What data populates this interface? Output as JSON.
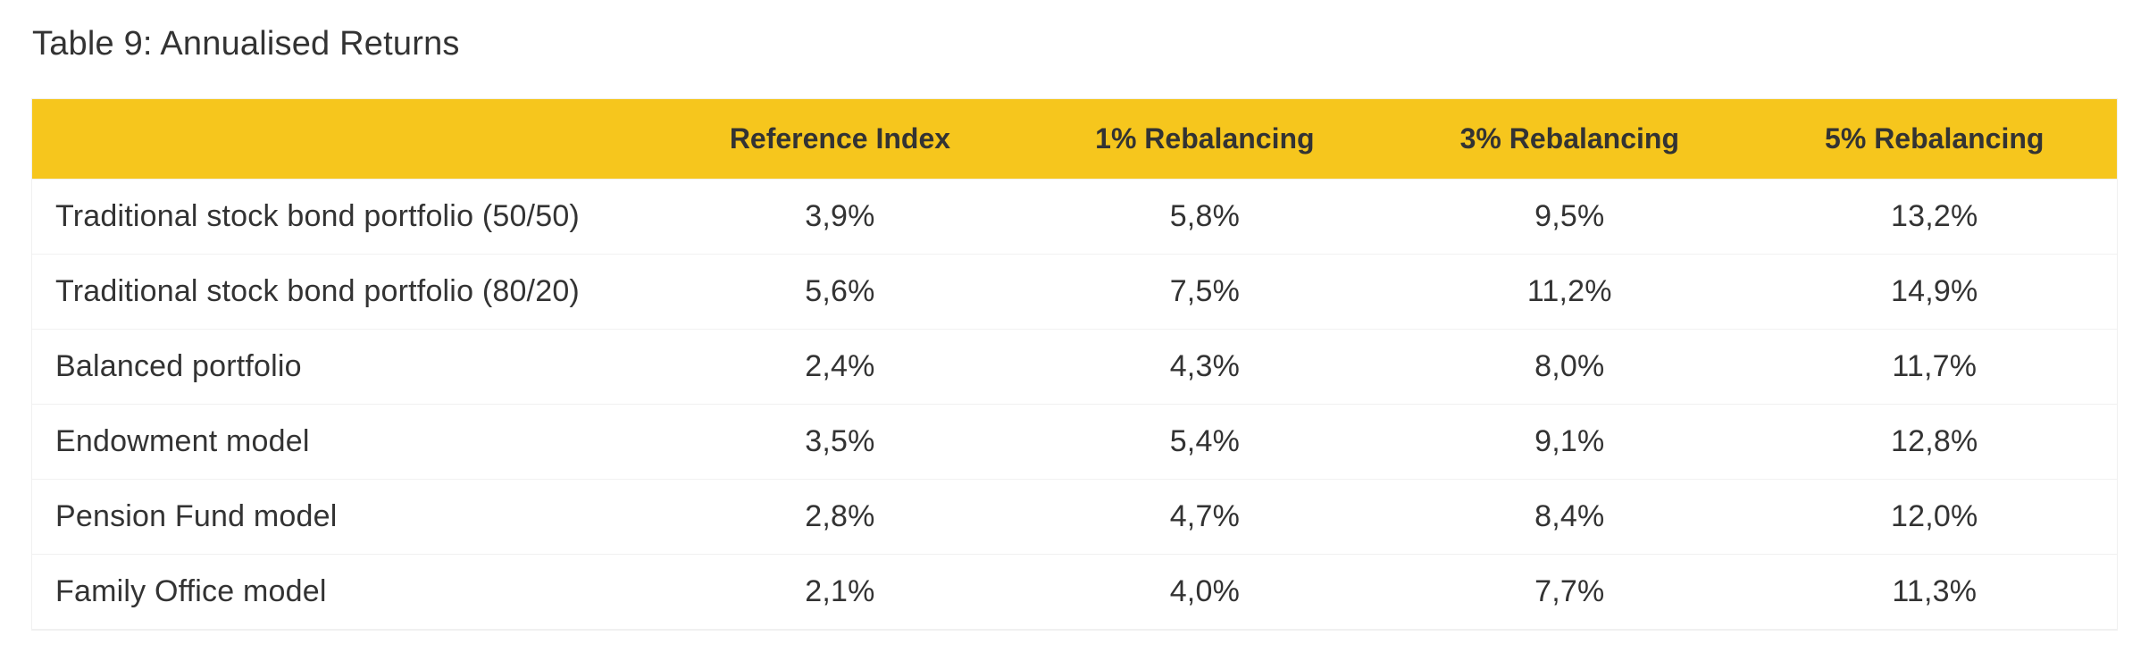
{
  "title": "Table 9: Annualised Returns",
  "table": {
    "header_bg": "#f6c61d",
    "row_border": "#f1f1f1",
    "text_color": "#333333",
    "columns": [
      "",
      "Reference Index",
      "1% Rebalancing",
      "3% Rebalancing",
      "5% Rebalancing"
    ],
    "rows": [
      {
        "label": "Traditional stock bond portfolio (50/50)",
        "values": [
          "3,9%",
          "5,8%",
          "9,5%",
          "13,2%"
        ]
      },
      {
        "label": "Traditional stock bond portfolio (80/20)",
        "values": [
          "5,6%",
          "7,5%",
          "11,2%",
          "14,9%"
        ]
      },
      {
        "label": "Balanced portfolio",
        "values": [
          "2,4%",
          "4,3%",
          "8,0%",
          "11,7%"
        ]
      },
      {
        "label": "Endowment model",
        "values": [
          "3,5%",
          "5,4%",
          "9,1%",
          "12,8%"
        ]
      },
      {
        "label": "Pension Fund model",
        "values": [
          "2,8%",
          "4,7%",
          "8,4%",
          "12,0%"
        ]
      },
      {
        "label": "Family Office model",
        "values": [
          "2,1%",
          "4,0%",
          "7,7%",
          "11,3%"
        ]
      }
    ]
  }
}
